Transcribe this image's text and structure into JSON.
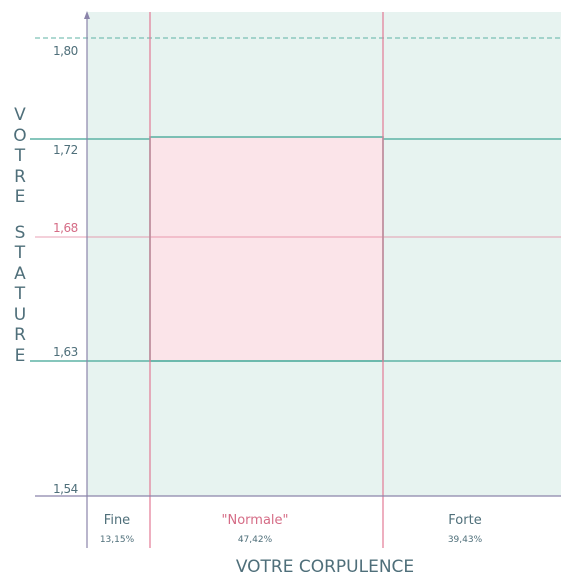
{
  "chart_data": {
    "type": "diagram",
    "y_axis": {
      "label": "VOTRE STATURE",
      "ticks": [
        {
          "value": 1.8,
          "label": "1,80",
          "style": "dashed"
        },
        {
          "value": 1.72,
          "label": "1,72",
          "style": "teal"
        },
        {
          "value": 1.68,
          "label": "1,68",
          "style": "pink"
        },
        {
          "value": 1.63,
          "label": "1,63",
          "style": "teal"
        },
        {
          "value": 1.54,
          "label": "1,54",
          "style": "axis"
        }
      ]
    },
    "x_axis": {
      "label": "VOTRE CORPULENCE",
      "categories": [
        {
          "name": "Fine",
          "percent": "13,15%",
          "share": 13.15
        },
        {
          "name": "\"Normale\"",
          "percent": "47,42%",
          "share": 47.42
        },
        {
          "name": "Forte",
          "percent": "39,43%",
          "share": 39.43
        }
      ]
    },
    "highlight": {
      "category": "\"Normale\"",
      "y_range": [
        1.63,
        1.72
      ]
    }
  },
  "colors": {
    "background": "#e7f3f0",
    "highlight": "#fbe4e9",
    "teal": "#5fb3a6",
    "pink": "#e27a95",
    "axis": "#8b84aa",
    "text": "#4f6f7a",
    "normale_text": "#d56c86"
  }
}
